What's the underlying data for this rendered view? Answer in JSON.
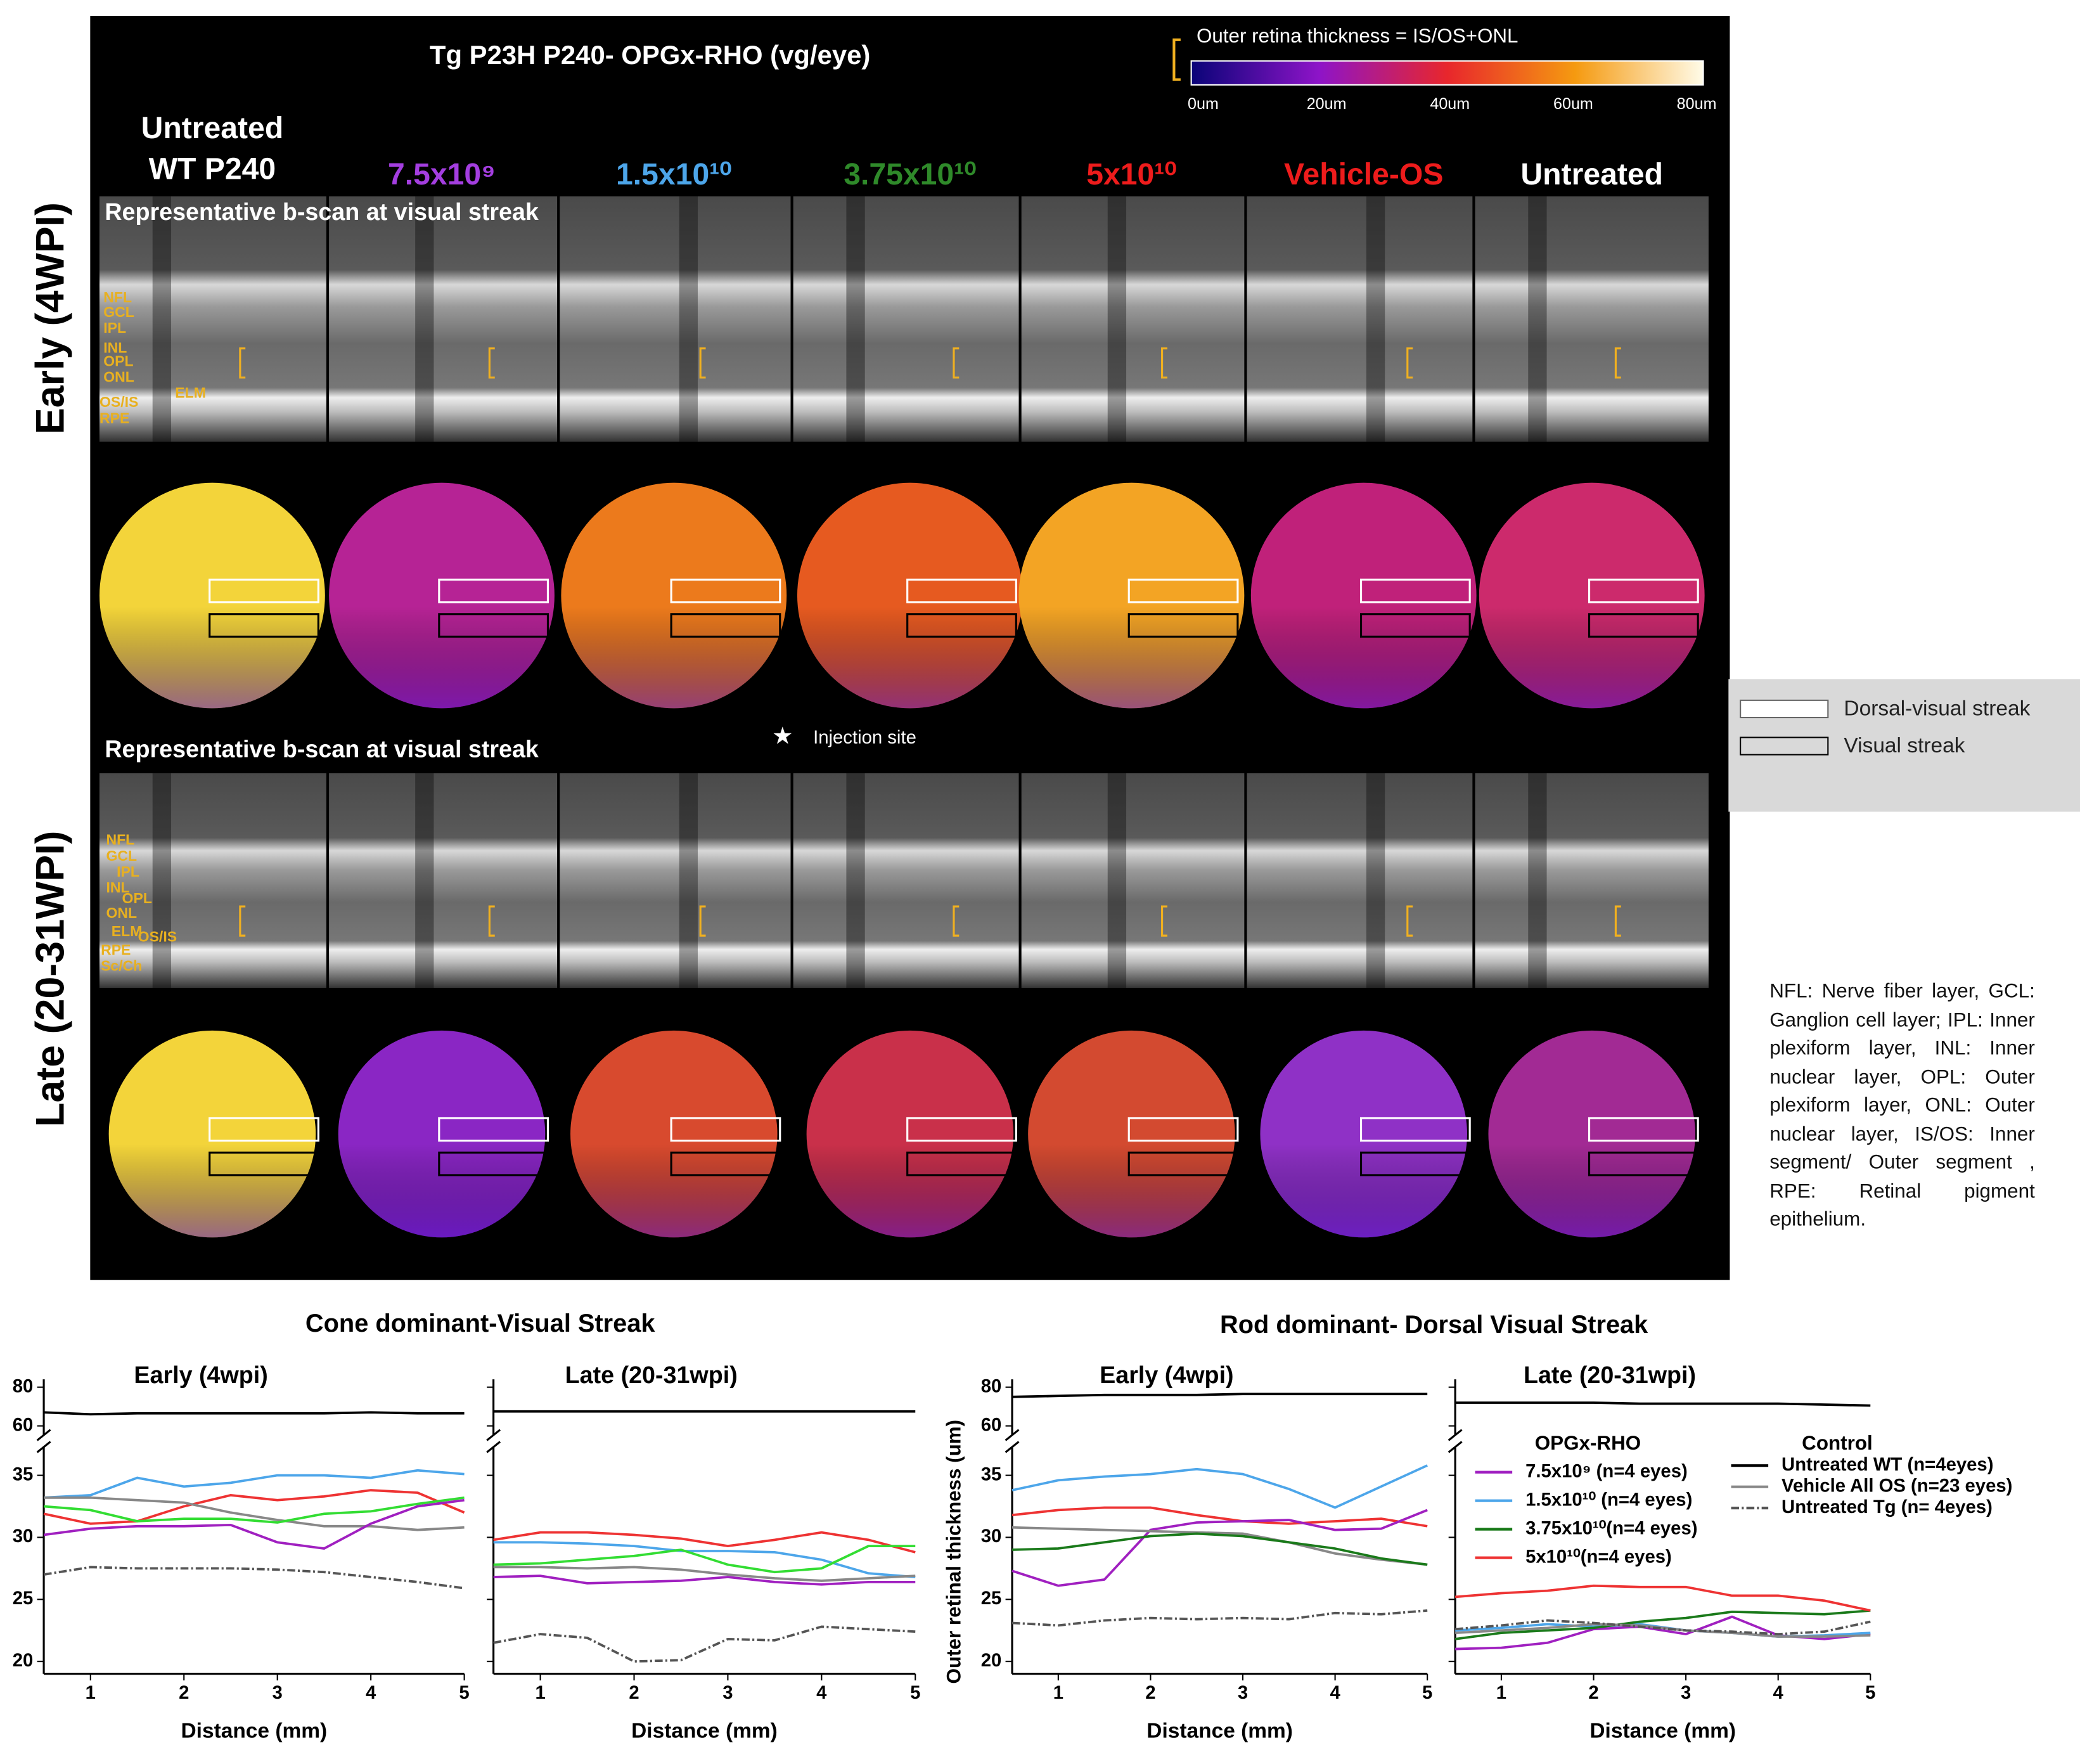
{
  "figure": {
    "title": "Tg P23H P240- OPGx-RHO (vg/eye)",
    "colorbar": {
      "label": "Outer retina thickness = IS/OS+ONL",
      "ticks": [
        "0um",
        "20um",
        "40um",
        "60um",
        "80um"
      ]
    },
    "columns": [
      {
        "label_lines": [
          "Untreated",
          "WT P240"
        ],
        "color": "#ffffff"
      },
      {
        "label": "7.5x10⁹",
        "color": "#a43ee0"
      },
      {
        "label": "1.5x10¹⁰",
        "color": "#4da6ea"
      },
      {
        "label": "3.75x10¹⁰",
        "color": "#2f8a2a"
      },
      {
        "label": "5x10¹⁰",
        "color": "#ee1c1c"
      },
      {
        "label": "Vehicle-OS",
        "color": "#ee1c1c"
      },
      {
        "label": "Untreated",
        "color": "#ffffff"
      }
    ],
    "rows": [
      "Early (4WPI)",
      "Late (20-31WPI)"
    ],
    "bscan_caption": "Representative b-scan at visual streak",
    "layers_early": [
      "NFL",
      "GCL",
      "IPL",
      "INL",
      "OPL",
      "ONL",
      "OS/IS",
      "RPE",
      "ELM"
    ],
    "layers_late": [
      "NFL",
      "GCL",
      "IPL",
      "INL",
      "OPL",
      "ONL",
      "ELM",
      "OS/IS",
      "RPE",
      "Sc/Ch"
    ],
    "injection_site": "Injection site",
    "roi_legend": [
      "Dorsal-visual streak",
      "Visual streak"
    ],
    "abbreviations": "NFL: Nerve fiber layer, GCL: Ganglion cell layer; IPL: Inner plexiform layer, INL: Inner nuclear layer, OPL: Outer plexiform layer, ONL: Outer nuclear layer, IS/OS: Inner segment/ Outer segment , RPE: Retinal pigment epithelium.",
    "panel_titles": [
      "Cone dominant-Visual Streak",
      "Rod dominant- Dorsal Visual Streak"
    ]
  },
  "chart_data": [
    {
      "type": "line",
      "title": "Early (4wpi)",
      "xlabel": "Distance (mm)",
      "x": [
        0.5,
        1,
        1.5,
        2,
        2.5,
        3,
        3.5,
        4,
        4.5,
        5
      ],
      "xlim": [
        0.5,
        5
      ],
      "xticks": [
        1,
        2,
        3,
        4,
        5
      ],
      "ylim": [
        19,
        36
      ],
      "yticks": [
        20,
        25,
        30,
        35
      ],
      "ylim_upper": [
        58,
        82
      ],
      "yticks_upper": [
        60,
        80
      ],
      "ytick_labels": true,
      "series": [
        {
          "color": "#000000",
          "band": "upper",
          "values": [
            67,
            66,
            66.5,
            66.5,
            66.5,
            66.5,
            66.5,
            67,
            66.5,
            66.5
          ]
        },
        {
          "color": "#4da6ea",
          "values": [
            33.2,
            33.4,
            34.8,
            34.1,
            34.4,
            35.0,
            35.0,
            34.8,
            35.4,
            35.1
          ]
        },
        {
          "color": "#ee3333",
          "values": [
            31.9,
            31.1,
            31.3,
            32.5,
            33.4,
            33.0,
            33.3,
            33.8,
            33.6,
            32.0
          ]
        },
        {
          "color": "#888888",
          "values": [
            33.2,
            33.2,
            33.0,
            32.8,
            32.0,
            31.4,
            30.9,
            30.9,
            30.6,
            30.8
          ]
        },
        {
          "color": "#33dd33",
          "values": [
            32.5,
            32.2,
            31.3,
            31.5,
            31.5,
            31.2,
            31.9,
            32.1,
            32.7,
            33.2
          ]
        },
        {
          "color": "#a020c0",
          "values": [
            30.2,
            30.7,
            30.9,
            30.9,
            31.0,
            29.6,
            29.1,
            31.1,
            32.5,
            33.0
          ]
        },
        {
          "color": "#555555",
          "dash": true,
          "values": [
            27.0,
            27.6,
            27.5,
            27.5,
            27.5,
            27.4,
            27.2,
            26.8,
            26.4,
            25.9
          ]
        }
      ]
    },
    {
      "type": "line",
      "title": "Late (20-31wpi)",
      "xlabel": "Distance (mm)",
      "x": [
        0.5,
        1,
        1.5,
        2,
        2.5,
        3,
        3.5,
        4,
        4.5,
        5
      ],
      "xlim": [
        0.5,
        5
      ],
      "xticks": [
        1,
        2,
        3,
        4,
        5
      ],
      "ylim": [
        19,
        36
      ],
      "yticks": [
        20,
        25,
        30,
        35
      ],
      "ylim_upper": [
        58,
        82
      ],
      "yticks_upper": [
        60,
        80
      ],
      "ytick_labels": false,
      "series": [
        {
          "color": "#000000",
          "band": "upper",
          "values": [
            67.5,
            67.5,
            67.5,
            67.5,
            67.5,
            67.5,
            67.5,
            67.5,
            67.5,
            67.5
          ]
        },
        {
          "color": "#ee3333",
          "values": [
            29.8,
            30.4,
            30.4,
            30.2,
            29.9,
            29.3,
            29.8,
            30.4,
            29.8,
            28.8
          ]
        },
        {
          "color": "#4da6ea",
          "values": [
            29.6,
            29.6,
            29.5,
            29.3,
            28.9,
            28.9,
            28.8,
            28.2,
            27.1,
            26.8
          ]
        },
        {
          "color": "#33dd33",
          "values": [
            27.8,
            27.9,
            28.2,
            28.5,
            29.0,
            27.8,
            27.2,
            27.5,
            29.3,
            29.3
          ]
        },
        {
          "color": "#888888",
          "values": [
            27.6,
            27.6,
            27.5,
            27.6,
            27.4,
            27.0,
            26.7,
            26.5,
            26.7,
            26.9
          ]
        },
        {
          "color": "#a020c0",
          "values": [
            26.8,
            26.9,
            26.3,
            26.4,
            26.5,
            26.8,
            26.4,
            26.2,
            26.4,
            26.4
          ]
        },
        {
          "color": "#555555",
          "dash": true,
          "values": [
            21.5,
            22.2,
            21.9,
            20.0,
            20.1,
            21.8,
            21.7,
            22.8,
            22.6,
            22.4
          ]
        }
      ]
    },
    {
      "type": "line",
      "title": "Early (4wpi)",
      "xlabel": "Distance (mm)",
      "ylabel": "Outer retinal thickness (um)",
      "x": [
        0.5,
        1,
        1.5,
        2,
        2.5,
        3,
        3.5,
        4,
        4.5,
        5
      ],
      "xlim": [
        0.5,
        5
      ],
      "xticks": [
        1,
        2,
        3,
        4,
        5
      ],
      "ylim": [
        19,
        36
      ],
      "yticks": [
        20,
        25,
        30,
        35
      ],
      "ylim_upper": [
        58,
        82
      ],
      "yticks_upper": [
        60,
        80
      ],
      "ytick_labels": true,
      "series": [
        {
          "color": "#000000",
          "band": "upper",
          "values": [
            75,
            75.5,
            76,
            76,
            76,
            76.5,
            76.5,
            76.5,
            76.5,
            76.5
          ]
        },
        {
          "color": "#4da6ea",
          "values": [
            33.8,
            34.6,
            34.9,
            35.1,
            35.5,
            35.1,
            33.9,
            32.4,
            34.1,
            35.8
          ]
        },
        {
          "color": "#ee3333",
          "values": [
            31.8,
            32.2,
            32.4,
            32.4,
            31.8,
            31.3,
            31.1,
            31.3,
            31.5,
            30.9
          ]
        },
        {
          "color": "#a020c0",
          "values": [
            27.3,
            26.1,
            26.6,
            30.6,
            31.2,
            31.3,
            31.4,
            30.6,
            30.7,
            32.2
          ]
        },
        {
          "color": "#888888",
          "values": [
            30.8,
            30.7,
            30.6,
            30.5,
            30.4,
            30.3,
            29.6,
            28.7,
            28.2,
            27.8
          ]
        },
        {
          "color": "#1a7a1a",
          "values": [
            29.0,
            29.1,
            29.6,
            30.1,
            30.3,
            30.1,
            29.6,
            29.1,
            28.3,
            27.8
          ]
        },
        {
          "color": "#555555",
          "dash": true,
          "values": [
            23.1,
            22.9,
            23.3,
            23.5,
            23.4,
            23.5,
            23.4,
            23.9,
            23.8,
            24.1
          ]
        }
      ]
    },
    {
      "type": "line",
      "title": "Late (20-31wpi)",
      "xlabel": "Distance (mm)",
      "x": [
        0.5,
        1,
        1.5,
        2,
        2.5,
        3,
        3.5,
        4,
        4.5,
        5
      ],
      "xlim": [
        0.5,
        5
      ],
      "xticks": [
        1,
        2,
        3,
        4,
        5
      ],
      "ylim": [
        19,
        36
      ],
      "yticks": [
        20,
        25,
        30,
        35
      ],
      "ylim_upper": [
        58,
        82
      ],
      "yticks_upper": [
        60,
        80
      ],
      "ytick_labels": false,
      "legend_groups": [
        "OPGx-RHO",
        "Control"
      ],
      "series": [
        {
          "name": "7.5x10⁹ (n=4 eyes)",
          "group": 0,
          "color": "#a020c0",
          "values": [
            21.0,
            21.1,
            21.5,
            22.6,
            22.8,
            22.2,
            23.6,
            22.1,
            21.8,
            22.2
          ]
        },
        {
          "name": "1.5x10¹⁰ (n=4 eyes)",
          "group": 0,
          "color": "#4da6ea",
          "values": [
            22.5,
            22.7,
            23.0,
            22.8,
            23.0,
            22.5,
            22.3,
            22.0,
            22.1,
            22.3
          ]
        },
        {
          "name": "3.75x10¹⁰(n=4 eyes)",
          "group": 0,
          "color": "#1a7a1a",
          "values": [
            21.8,
            22.3,
            22.5,
            22.7,
            23.2,
            23.5,
            24.0,
            23.9,
            23.8,
            24.1
          ]
        },
        {
          "name": "5x10¹⁰(n=4 eyes)",
          "group": 0,
          "color": "#ee3333",
          "values": [
            25.2,
            25.5,
            25.7,
            26.1,
            26.0,
            26.0,
            25.3,
            25.3,
            24.9,
            24.1
          ]
        },
        {
          "name": "Untreated WT (n=4eyes)",
          "group": 1,
          "color": "#000000",
          "band": "upper",
          "values": [
            72,
            72,
            72,
            72,
            71.5,
            71.5,
            71.5,
            71.5,
            71,
            70.5
          ]
        },
        {
          "name": "Vehicle All OS (n=23 eyes)",
          "group": 1,
          "color": "#888888",
          "values": [
            22.3,
            22.5,
            22.7,
            23.0,
            22.9,
            22.5,
            22.3,
            22.0,
            22.0,
            22.1
          ]
        },
        {
          "name": "Untreated Tg (n= 4eyes)",
          "group": 1,
          "color": "#555555",
          "dash": true,
          "values": [
            22.6,
            22.9,
            23.3,
            23.1,
            22.8,
            22.5,
            22.4,
            22.2,
            22.4,
            23.2
          ]
        }
      ]
    }
  ]
}
